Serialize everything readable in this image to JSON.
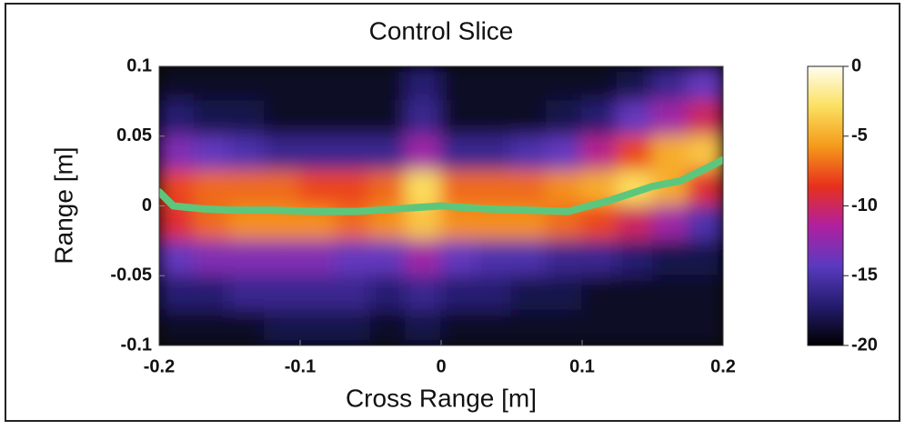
{
  "chart_data": {
    "type": "heatmap",
    "title": "Control Slice",
    "x_label": "Cross Range [m]",
    "y_label": "Range [m]",
    "xlim": [
      -0.2,
      0.2
    ],
    "ylim": [
      -0.1,
      0.1
    ],
    "xticks": [
      -0.2,
      -0.1,
      0,
      0.1,
      0.2
    ],
    "yticks": [
      -0.1,
      -0.05,
      0,
      0.05,
      0.1
    ],
    "x": [
      -0.1875,
      -0.1625,
      -0.1375,
      -0.1125,
      -0.0875,
      -0.0625,
      -0.0375,
      -0.0125,
      0.0125,
      0.0375,
      0.0625,
      0.0875,
      0.1125,
      0.1375,
      0.1625,
      0.1875
    ],
    "y": [
      0.0875,
      0.0625,
      0.0375,
      0.0125,
      -0.0125,
      -0.0375,
      -0.0625,
      -0.0875
    ],
    "z": [
      [
        -19,
        -19,
        -19,
        -19,
        -19,
        -19,
        -19,
        -17,
        -19,
        -19,
        -19,
        -19,
        -19,
        -18,
        -16,
        -14
      ],
      [
        -17,
        -18,
        -18,
        -19,
        -19,
        -19,
        -19,
        -16,
        -19,
        -19,
        -19,
        -18,
        -17,
        -14,
        -12,
        -10
      ],
      [
        -13,
        -14,
        -15,
        -16,
        -16,
        -16,
        -16,
        -12,
        -16,
        -16,
        -15,
        -14,
        -11,
        -8,
        -5,
        -4
      ],
      [
        -8,
        -7,
        -7,
        -7,
        -8,
        -8,
        -7,
        -3,
        -7,
        -7,
        -7,
        -6,
        -5,
        -3,
        -5,
        -9
      ],
      [
        -9,
        -7,
        -6,
        -6,
        -6,
        -7,
        -6,
        -4,
        -6,
        -6,
        -6,
        -7,
        -8,
        -10,
        -12,
        -15
      ],
      [
        -14,
        -13,
        -13,
        -13,
        -13,
        -14,
        -14,
        -12,
        -14,
        -15,
        -15,
        -16,
        -16,
        -17,
        -18,
        -18
      ],
      [
        -17,
        -17,
        -16,
        -16,
        -16,
        -16,
        -17,
        -16,
        -17,
        -17,
        -18,
        -18,
        -19,
        -19,
        -19,
        -19
      ],
      [
        -19,
        -19,
        -19,
        -18,
        -18,
        -18,
        -19,
        -18,
        -19,
        -19,
        -19,
        -19,
        -19,
        -19,
        -19,
        -19
      ]
    ],
    "zlim": [
      -20,
      0
    ],
    "zticks": [
      0,
      -5,
      -10,
      -15,
      -20
    ],
    "colormap": [
      "#000000",
      "#241c6e",
      "#5a3ac0",
      "#b020a0",
      "#e8301c",
      "#f59a1a",
      "#fbe060",
      "#fffdf0"
    ],
    "series": [
      {
        "color": "#5cc77c",
        "x": [
          -0.2,
          -0.19,
          -0.17,
          -0.15,
          -0.12,
          -0.09,
          -0.06,
          -0.03,
          0,
          0.03,
          0.06,
          0.09,
          0.12,
          0.15,
          0.17,
          0.2
        ],
        "values": [
          0.01,
          0.0,
          -0.002,
          -0.003,
          -0.003,
          -0.004,
          -0.004,
          -0.002,
          0,
          -0.002,
          -0.003,
          -0.004,
          0.004,
          0.014,
          0.018,
          0.033
        ]
      }
    ]
  }
}
